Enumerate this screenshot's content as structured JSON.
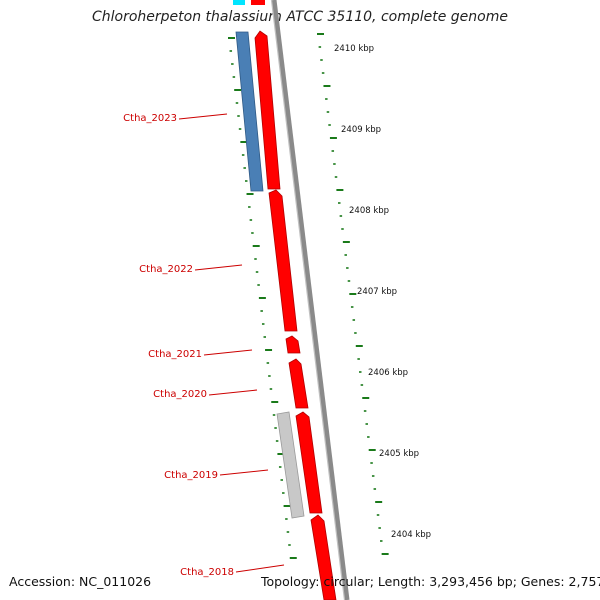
{
  "title": "Chloroherpeton thalassium ATCC 35110, complete genome",
  "accession": "Accession: NC_011026",
  "summary": "Topology: circular; Length: 3,293,456 bp; Genes: 2,757",
  "colors": {
    "forward_gene": "#ff0000",
    "reverse_gene": "#4a7fb5",
    "other_feature": "#c8c8c8",
    "backbone": "#8a8a8a",
    "gc_ticks": "#1a7a1a",
    "label": "#cc0000",
    "top_feature": "#00e5ff"
  },
  "scale_labels": [
    "2410 kbp",
    "2409 kbp",
    "2408 kbp",
    "2407 kbp",
    "2406 kbp",
    "2405 kbp",
    "2404 kbp"
  ],
  "genes": [
    {
      "name": "Ctha_2023",
      "strand": "reverse",
      "type": "CDS"
    },
    {
      "name": "Ctha_2022",
      "strand": "forward",
      "type": "CDS"
    },
    {
      "name": "Ctha_2021",
      "strand": "forward",
      "type": "CDS"
    },
    {
      "name": "Ctha_2020",
      "strand": "forward",
      "type": "CDS"
    },
    {
      "name": "Ctha_2019",
      "strand": "forward",
      "type": "CDS"
    },
    {
      "name": "Ctha_2018",
      "strand": "forward",
      "type": "CDS"
    }
  ]
}
